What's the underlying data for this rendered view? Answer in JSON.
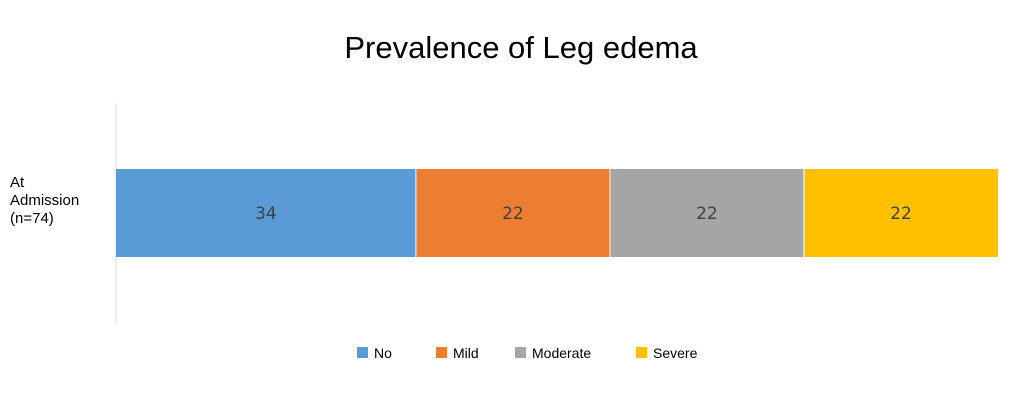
{
  "chart_data": {
    "type": "bar",
    "orientation": "horizontal",
    "stacked": true,
    "title": "Prevalence of Leg edema",
    "xlabel": "",
    "ylabel": "",
    "categories": [
      [
        "At",
        "Admission",
        "(n=74)"
      ]
    ],
    "xlim": [
      0,
      100
    ],
    "grid": false,
    "legend_position": "bottom",
    "series": [
      {
        "name": "No",
        "values": [
          34
        ],
        "labels": [
          "34"
        ],
        "color": "#5B9BD5"
      },
      {
        "name": "Mild",
        "values": [
          22
        ],
        "labels": [
          "22"
        ],
        "color": "#ED7D31"
      },
      {
        "name": "Moderate",
        "values": [
          22
        ],
        "labels": [
          "22"
        ],
        "color": "#A5A5A5"
      },
      {
        "name": "Severe",
        "values": [
          22
        ],
        "labels": [
          "22"
        ],
        "color": "#FFC000"
      }
    ]
  }
}
